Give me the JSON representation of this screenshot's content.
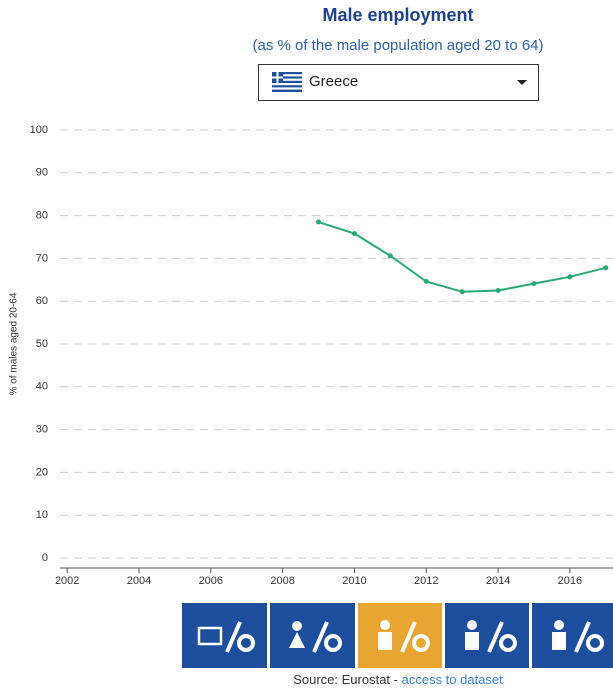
{
  "title": "Male employment",
  "subtitle": "(as % of the male population aged 20 to 64)",
  "country_select": {
    "selected": "Greece"
  },
  "chart_data": {
    "type": "line",
    "y_axis_label": "% of males aged 20-64",
    "x": [
      2009,
      2010,
      2011,
      2012,
      2013,
      2014,
      2015,
      2016,
      2017
    ],
    "series": [
      {
        "name": "Greece",
        "color": "#2aa876",
        "values": [
          78.5,
          75.8,
          70.6,
          64.6,
          62.2,
          62.5,
          64.1,
          65.7,
          67.8
        ]
      }
    ],
    "xlim": [
      2001.8,
      2017.2
    ],
    "xticks": [
      2002,
      2004,
      2006,
      2008,
      2010,
      2012,
      2014,
      2016
    ],
    "ylim": [
      0,
      100
    ],
    "yticks": [
      0,
      10,
      20,
      30,
      40,
      50,
      60,
      70,
      80,
      90,
      100
    ],
    "grid": true
  },
  "source": {
    "text": "Source: Eurostat - ",
    "link": "access to dataset"
  }
}
